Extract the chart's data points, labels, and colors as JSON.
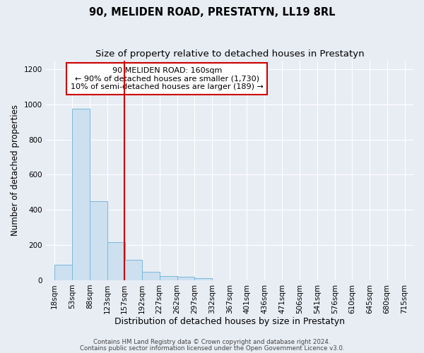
{
  "title": "90, MELIDEN ROAD, PRESTATYN, LL19 8RL",
  "subtitle": "Size of property relative to detached houses in Prestatyn",
  "xlabel": "Distribution of detached houses by size in Prestatyn",
  "ylabel": "Number of detached properties",
  "footer1": "Contains HM Land Registry data © Crown copyright and database right 2024.",
  "footer2": "Contains public sector information licensed under the Open Government Licence v3.0.",
  "property_label": "90 MELIDEN ROAD: 160sqm",
  "annotation_line1": "← 90% of detached houses are smaller (1,730)",
  "annotation_line2": "10% of semi-detached houses are larger (189) →",
  "red_line_x": 157,
  "bin_edges": [
    18,
    53,
    88,
    123,
    157,
    192,
    227,
    262,
    297,
    332,
    367,
    401,
    436,
    471,
    506,
    541,
    576,
    610,
    645,
    680,
    715
  ],
  "bar_heights": [
    90,
    975,
    450,
    215,
    115,
    50,
    25,
    20,
    10,
    0,
    0,
    0,
    0,
    0,
    0,
    0,
    0,
    0,
    0,
    0
  ],
  "bar_color": "#cce0f0",
  "bar_edge_color": "#7ab8d9",
  "red_line_color": "#cc0000",
  "background_color": "#e8edf4",
  "ylim": [
    0,
    1250
  ],
  "yticks": [
    0,
    200,
    400,
    600,
    800,
    1000,
    1200
  ],
  "annotation_box_facecolor": "#ffffff",
  "annotation_box_edgecolor": "#cc0000",
  "title_fontsize": 10.5,
  "subtitle_fontsize": 9.5,
  "xlabel_fontsize": 9,
  "ylabel_fontsize": 8.5,
  "tick_fontsize": 7.5,
  "annotation_fontsize": 8,
  "footer_fontsize": 6.2,
  "grid_color": "#ffffff",
  "grid_linewidth": 0.8
}
